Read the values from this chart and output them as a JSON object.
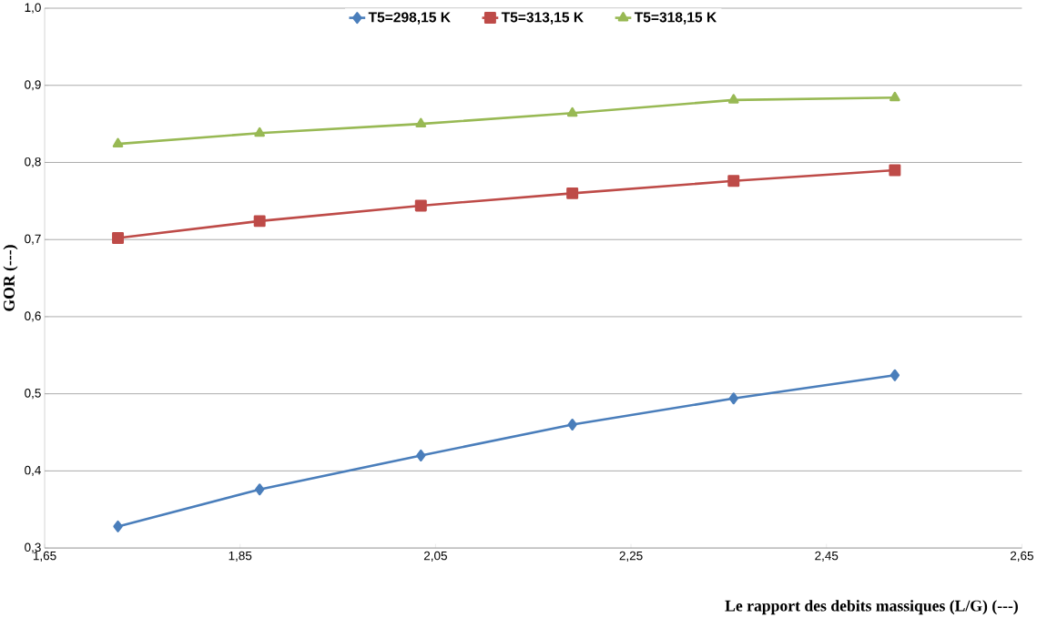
{
  "chart_data": {
    "type": "line",
    "xlabel": "Le rapport des debits massiques (L/G) (---)",
    "ylabel": "GOR (---)",
    "x": [
      1.725,
      1.87,
      2.035,
      2.19,
      2.355,
      2.52
    ],
    "series": [
      {
        "name": "T5=298,15 K",
        "color": "#4a7ebb",
        "marker": "diamond",
        "values": [
          0.328,
          0.376,
          0.42,
          0.46,
          0.494,
          0.524
        ]
      },
      {
        "name": "T5=313,15 K",
        "color": "#be4b48",
        "marker": "square",
        "values": [
          0.702,
          0.724,
          0.744,
          0.76,
          0.776,
          0.79
        ]
      },
      {
        "name": "T5=318,15 K",
        "color": "#98b954",
        "marker": "triangle",
        "values": [
          0.824,
          0.838,
          0.85,
          0.864,
          0.881,
          0.884
        ]
      }
    ],
    "xlim": [
      1.65,
      2.65
    ],
    "xticks": [
      {
        "value": 1.65,
        "label": "1,65"
      },
      {
        "value": 1.85,
        "label": "1,85"
      },
      {
        "value": 2.05,
        "label": "2,05"
      },
      {
        "value": 2.25,
        "label": "2,25"
      },
      {
        "value": 2.45,
        "label": "2,45"
      },
      {
        "value": 2.65,
        "label": "2,65"
      }
    ],
    "ylim": [
      0.3,
      1.0
    ],
    "yticks": [
      {
        "value": 0.3,
        "label": "0,3"
      },
      {
        "value": 0.4,
        "label": "0,4"
      },
      {
        "value": 0.5,
        "label": "0,5"
      },
      {
        "value": 0.6,
        "label": "0,6"
      },
      {
        "value": 0.7,
        "label": "0,7"
      },
      {
        "value": 0.8,
        "label": "0,8"
      },
      {
        "value": 0.9,
        "label": "0,9"
      },
      {
        "value": 1.0,
        "label": "1,0"
      }
    ],
    "grid": "y",
    "legend": "top",
    "line_style": "solid"
  }
}
